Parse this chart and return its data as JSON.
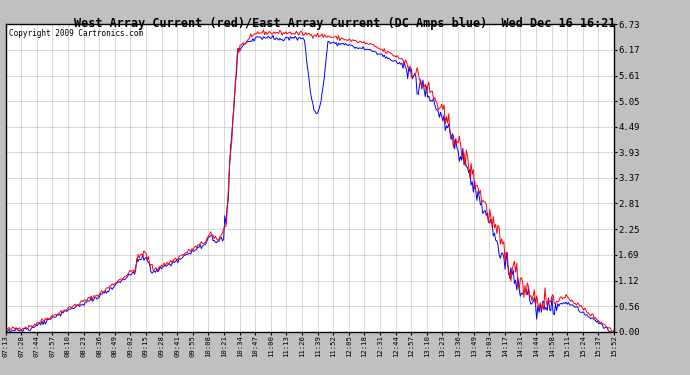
{
  "title": "West Array Current (red)/East Array Current (DC Amps blue)  Wed Dec 16 16:21",
  "copyright": "Copyright 2009 Cartronics.com",
  "yticks": [
    0.0,
    0.56,
    1.12,
    1.69,
    2.25,
    2.81,
    3.37,
    3.93,
    4.49,
    5.05,
    5.61,
    6.17,
    6.73
  ],
  "ymin": 0.0,
  "ymax": 6.73,
  "outer_bg": "#c0c0c0",
  "title_bg": "#c0c0c0",
  "plot_bg": "#ffffff",
  "grid_color": "#aaaaaa",
  "x_labels": [
    "07:13",
    "07:28",
    "07:44",
    "07:57",
    "08:10",
    "08:23",
    "08:36",
    "08:49",
    "09:02",
    "09:15",
    "09:28",
    "09:41",
    "09:55",
    "10:08",
    "10:21",
    "10:34",
    "10:47",
    "11:00",
    "11:13",
    "11:26",
    "11:39",
    "11:52",
    "12:05",
    "12:18",
    "12:31",
    "12:44",
    "12:57",
    "13:10",
    "13:23",
    "13:36",
    "13:49",
    "14:03",
    "14:17",
    "14:31",
    "14:44",
    "14:58",
    "15:11",
    "15:24",
    "15:37",
    "15:52"
  ],
  "red_color": "#ff0000",
  "blue_color": "#0000ff",
  "line_width": 0.7
}
